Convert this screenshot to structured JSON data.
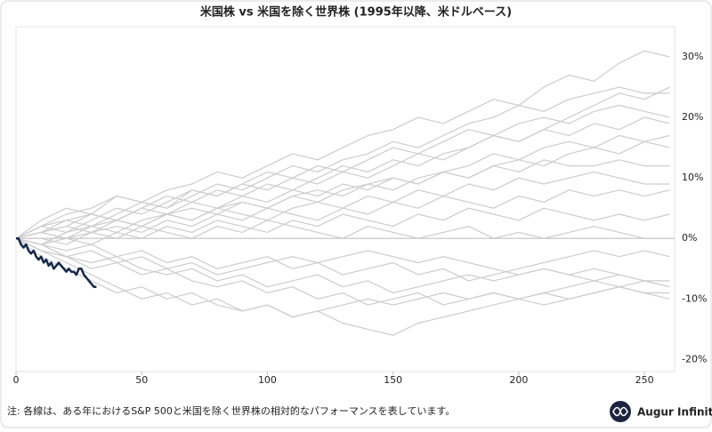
{
  "chart_data": {
    "type": "line",
    "title": "米国株 vs 米国を除く世界株 (1995年以降、米ドルベース)",
    "note": "注: 各線は、ある年におけるS&P 500と米国を除く世界株の相対的なパフォーマンスを表しています。",
    "brand": "Augur Infinity",
    "x": [
      0,
      10,
      20,
      30,
      40,
      50,
      60,
      70,
      80,
      90,
      100,
      110,
      120,
      130,
      140,
      150,
      160,
      170,
      180,
      190,
      200,
      210,
      220,
      230,
      240,
      250,
      260
    ],
    "xlim": [
      0,
      262
    ],
    "xticks": [
      0,
      50,
      100,
      150,
      200,
      250
    ],
    "ylim": [
      -22,
      35
    ],
    "yticks": [
      {
        "value": -20,
        "label": "-20%"
      },
      {
        "value": -10,
        "label": "-10%"
      },
      {
        "value": 0,
        "label": "0%"
      },
      {
        "value": 10,
        "label": "10%"
      },
      {
        "value": 20,
        "label": "20%"
      },
      {
        "value": 30,
        "label": "30%"
      }
    ],
    "y_axis_side": "right",
    "grid": false,
    "zero_line": true,
    "series": [
      {
        "color": "#cccccc",
        "values": [
          0,
          2,
          4,
          5,
          7,
          6,
          8,
          9,
          11,
          10,
          12,
          14,
          13,
          15,
          17,
          18,
          20,
          19,
          21,
          23,
          22,
          25,
          27,
          26,
          29,
          31,
          30
        ]
      },
      {
        "color": "#cccccc",
        "values": [
          0,
          1,
          3,
          2,
          4,
          6,
          5,
          7,
          9,
          8,
          10,
          12,
          11,
          13,
          14,
          16,
          15,
          17,
          19,
          20,
          22,
          21,
          23,
          24,
          25,
          24,
          24
        ]
      },
      {
        "color": "#cccccc",
        "values": [
          0,
          2,
          1,
          3,
          5,
          4,
          6,
          8,
          7,
          9,
          11,
          10,
          12,
          11,
          13,
          15,
          14,
          16,
          18,
          17,
          19,
          20,
          19,
          21,
          22,
          21,
          20
        ]
      },
      {
        "color": "#cccccc",
        "values": [
          0,
          1,
          2,
          4,
          3,
          5,
          7,
          6,
          8,
          7,
          9,
          8,
          10,
          12,
          11,
          13,
          12,
          14,
          15,
          17,
          16,
          18,
          17,
          19,
          18,
          20,
          19
        ]
      },
      {
        "color": "#cccccc",
        "values": [
          0,
          -1,
          1,
          2,
          1,
          3,
          4,
          3,
          5,
          6,
          5,
          7,
          8,
          7,
          9,
          10,
          9,
          11,
          12,
          14,
          13,
          15,
          16,
          15,
          17,
          16,
          17
        ]
      },
      {
        "color": "#cccccc",
        "values": [
          0,
          1,
          0,
          2,
          3,
          2,
          4,
          5,
          4,
          6,
          5,
          7,
          6,
          8,
          9,
          8,
          10,
          11,
          10,
          12,
          13,
          12,
          14,
          15,
          14,
          16,
          15
        ]
      },
      {
        "color": "#cccccc",
        "values": [
          0,
          2,
          3,
          4,
          3,
          5,
          4,
          6,
          5,
          7,
          6,
          8,
          7,
          9,
          8,
          10,
          9,
          11,
          10,
          12,
          11,
          13,
          12,
          12,
          13,
          12,
          12
        ]
      },
      {
        "color": "#cccccc",
        "values": [
          0,
          1,
          2,
          1,
          3,
          2,
          4,
          3,
          5,
          4,
          3,
          5,
          6,
          5,
          7,
          6,
          8,
          7,
          9,
          8,
          10,
          9,
          10,
          11,
          10,
          9,
          9
        ]
      },
      {
        "color": "#cccccc",
        "values": [
          0,
          -1,
          0,
          1,
          2,
          1,
          3,
          2,
          4,
          3,
          5,
          4,
          3,
          5,
          4,
          6,
          5,
          7,
          6,
          5,
          7,
          6,
          8,
          7,
          8,
          7,
          8
        ]
      },
      {
        "color": "#cccccc",
        "values": [
          0,
          1,
          0,
          -1,
          1,
          0,
          2,
          1,
          3,
          2,
          1,
          3,
          2,
          4,
          3,
          2,
          4,
          3,
          5,
          4,
          3,
          5,
          4,
          3,
          4,
          3,
          4
        ]
      },
      {
        "color": "#cccccc",
        "values": [
          0,
          0,
          -1,
          1,
          0,
          2,
          1,
          0,
          2,
          1,
          3,
          2,
          1,
          0,
          2,
          1,
          0,
          1,
          2,
          0,
          1,
          0,
          1,
          2,
          1,
          0,
          0
        ]
      },
      {
        "color": "#cccccc",
        "values": [
          0,
          -1,
          -2,
          -1,
          -3,
          -2,
          -4,
          -3,
          -5,
          -4,
          -3,
          -5,
          -4,
          -6,
          -5,
          -4,
          -6,
          -5,
          -7,
          -6,
          -5,
          -4,
          -3,
          -2,
          -3,
          -2,
          -3
        ]
      },
      {
        "color": "#cccccc",
        "values": [
          0,
          -2,
          -3,
          -4,
          -3,
          -5,
          -6,
          -5,
          -7,
          -6,
          -8,
          -7,
          -6,
          -8,
          -7,
          -9,
          -8,
          -7,
          -6,
          -7,
          -6,
          -5,
          -6,
          -5,
          -6,
          -7,
          -8
        ]
      },
      {
        "color": "#cccccc",
        "values": [
          0,
          -1,
          -3,
          -5,
          -4,
          -6,
          -5,
          -7,
          -8,
          -7,
          -9,
          -8,
          -10,
          -9,
          -11,
          -10,
          -9,
          -11,
          -10,
          -9,
          -10,
          -9,
          -8,
          -7,
          -8,
          -7,
          -8
        ]
      },
      {
        "color": "#cccccc",
        "values": [
          0,
          -2,
          -4,
          -6,
          -8,
          -10,
          -9,
          -11,
          -10,
          -12,
          -11,
          -13,
          -12,
          -14,
          -15,
          -16,
          -14,
          -13,
          -12,
          -11,
          -10,
          -11,
          -10,
          -9,
          -8,
          -9,
          -9
        ]
      },
      {
        "color": "#cccccc",
        "values": [
          0,
          -3,
          -5,
          -7,
          -9,
          -8,
          -10,
          -9,
          -11,
          -12,
          -11,
          -13,
          -12,
          -11,
          -10,
          -11,
          -10,
          -9,
          -10,
          -9,
          -10,
          -9,
          -10,
          -9,
          -8,
          -9,
          -10
        ]
      },
      {
        "color": "#cccccc",
        "values": [
          0,
          -2,
          -3,
          -2,
          -4,
          -3,
          -5,
          -4,
          -6,
          -5,
          -4,
          -3,
          -4,
          -3,
          -2,
          -3,
          -4,
          -3,
          -4,
          -5,
          -6,
          -5,
          -6,
          -7,
          -6,
          -7,
          -7
        ]
      },
      {
        "color": "#cccccc",
        "values": [
          0,
          3,
          5,
          4,
          7,
          6,
          5,
          8,
          7,
          9,
          8,
          10,
          9,
          11,
          10,
          12,
          14,
          13,
          15,
          17,
          16,
          18,
          20,
          22,
          24,
          23,
          25
        ]
      },
      {
        "color": "#14284b",
        "width": 2.5,
        "x": [
          0,
          1,
          2,
          3,
          4,
          5,
          6,
          7,
          8,
          9,
          10,
          11,
          12,
          13,
          14,
          15,
          16,
          17,
          18,
          19,
          20,
          21,
          22,
          23,
          24,
          25,
          26,
          27,
          28,
          29,
          30,
          31,
          32
        ],
        "values": [
          0,
          0,
          -1,
          -1.5,
          -1,
          -2,
          -2.5,
          -2,
          -3,
          -3.5,
          -3,
          -4,
          -3.5,
          -4.5,
          -4,
          -5,
          -4.5,
          -4,
          -4.5,
          -5,
          -5.5,
          -5,
          -5.5,
          -5.5,
          -6,
          -5,
          -5,
          -6,
          -6.5,
          -7,
          -7.5,
          -8,
          -8
        ]
      }
    ]
  }
}
